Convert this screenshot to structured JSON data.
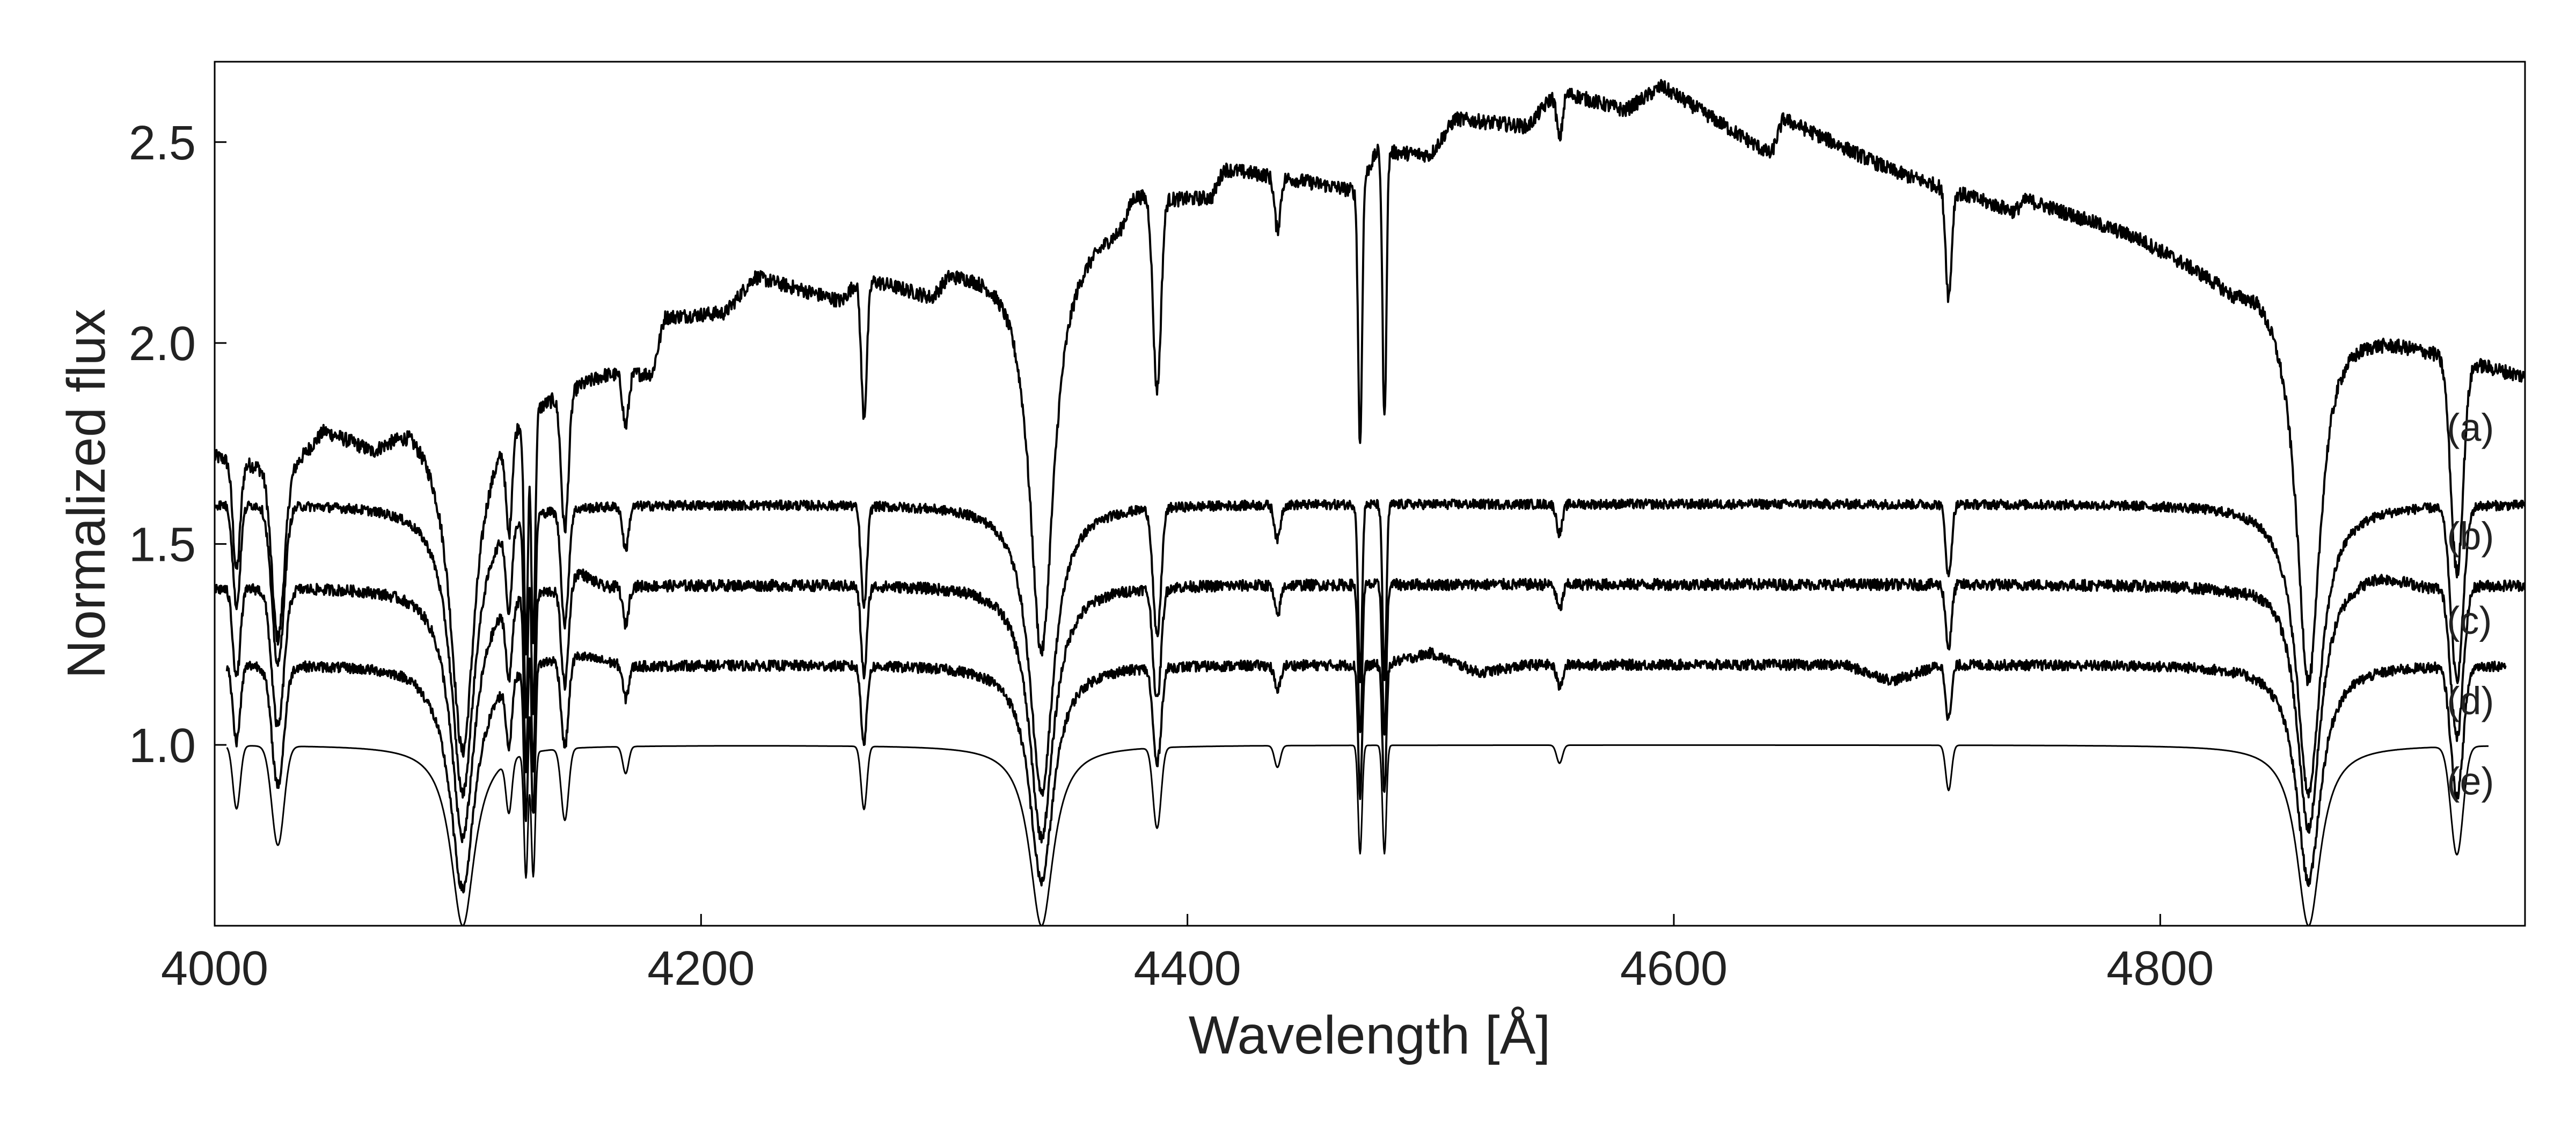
{
  "chart_data": {
    "type": "line",
    "title": "",
    "xlabel": "Wavelength [Å]",
    "ylabel": "Normalized flux",
    "xlim": [
      4000,
      4950
    ],
    "ylim": [
      0.55,
      2.7
    ],
    "xticks": [
      4000,
      4200,
      4400,
      4600,
      4800
    ],
    "xtick_labels": [
      "4000",
      "4200",
      "4400",
      "4600",
      "4800"
    ],
    "yticks": [
      1.0,
      1.5,
      2.0,
      2.5
    ],
    "ytick_labels": [
      "1.0",
      "1.5",
      "2.0",
      "2.5"
    ],
    "grid": false,
    "legend": "none",
    "line_color": "#000000",
    "absorption_lines": [
      {
        "x": 4102,
        "depth": 1.0,
        "width": 6
      },
      {
        "x": 4340,
        "depth": 1.0,
        "width": 6
      },
      {
        "x": 4861,
        "depth": 1.0,
        "width": 6
      },
      {
        "x": 4026,
        "depth": 0.55,
        "width": 2.5
      },
      {
        "x": 4009,
        "depth": 0.35,
        "width": 1.5
      },
      {
        "x": 4121,
        "depth": 0.3,
        "width": 1.2
      },
      {
        "x": 4128,
        "depth": 0.7,
        "width": 0.8
      },
      {
        "x": 4131,
        "depth": 0.7,
        "width": 0.8
      },
      {
        "x": 4144,
        "depth": 0.4,
        "width": 1.5
      },
      {
        "x": 4169,
        "depth": 0.15,
        "width": 1.2
      },
      {
        "x": 4267,
        "depth": 0.35,
        "width": 1.2
      },
      {
        "x": 4387,
        "depth": 0.25,
        "width": 1.5
      },
      {
        "x": 4388,
        "depth": 0.25,
        "width": 1.5
      },
      {
        "x": 4437,
        "depth": 0.12,
        "width": 1.2
      },
      {
        "x": 4471,
        "depth": 0.6,
        "width": 0.8
      },
      {
        "x": 4481,
        "depth": 0.6,
        "width": 0.8
      },
      {
        "x": 4553,
        "depth": 0.1,
        "width": 1.2
      },
      {
        "x": 4713,
        "depth": 0.25,
        "width": 1.2
      },
      {
        "x": 4922,
        "depth": 0.6,
        "width": 2.5
      }
    ],
    "series": [
      {
        "label": "(a)",
        "label_x": 4930,
        "label_y": 1.79,
        "x_end": 4950,
        "noise": 0.018,
        "continuum": [
          [
            4000,
            1.72
          ],
          [
            4030,
            1.68
          ],
          [
            4045,
            1.79
          ],
          [
            4065,
            1.75
          ],
          [
            4080,
            1.82
          ],
          [
            4098,
            1.78
          ],
          [
            4115,
            1.82
          ],
          [
            4130,
            1.86
          ],
          [
            4160,
            1.93
          ],
          [
            4180,
            1.93
          ],
          [
            4185,
            2.07
          ],
          [
            4210,
            2.08
          ],
          [
            4222,
            2.17
          ],
          [
            4258,
            2.11
          ],
          [
            4265,
            2.17
          ],
          [
            4295,
            2.13
          ],
          [
            4302,
            2.19
          ],
          [
            4330,
            2.21
          ],
          [
            4340,
            2.24
          ],
          [
            4352,
            2.27
          ],
          [
            4372,
            2.31
          ],
          [
            4378,
            2.39
          ],
          [
            4395,
            2.37
          ],
          [
            4410,
            2.37
          ],
          [
            4415,
            2.44
          ],
          [
            4445,
            2.41
          ],
          [
            4470,
            2.38
          ],
          [
            4478,
            2.48
          ],
          [
            4500,
            2.47
          ],
          [
            4510,
            2.56
          ],
          [
            4540,
            2.54
          ],
          [
            4552,
            2.63
          ],
          [
            4580,
            2.58
          ],
          [
            4595,
            2.64
          ],
          [
            4640,
            2.47
          ],
          [
            4645,
            2.56
          ],
          [
            4690,
            2.43
          ],
          [
            4740,
            2.33
          ],
          [
            4745,
            2.36
          ],
          [
            4790,
            2.27
          ],
          [
            4830,
            2.15
          ],
          [
            4840,
            2.17
          ],
          [
            4880,
            2.05
          ],
          [
            4920,
            1.97
          ],
          [
            4950,
            1.92
          ]
        ]
      },
      {
        "label": "(b)",
        "label_x": 4930,
        "label_y": 1.52,
        "x_end": 4950,
        "noise": 0.012,
        "continuum": [
          [
            4000,
            1.6
          ],
          [
            4950,
            1.6
          ]
        ]
      },
      {
        "label": "(c)",
        "label_x": 4930,
        "label_y": 1.31,
        "x_end": 4950,
        "noise": 0.014,
        "continuum": [
          [
            4000,
            1.39
          ],
          [
            4140,
            1.4
          ],
          [
            4150,
            1.44
          ],
          [
            4160,
            1.4
          ],
          [
            4830,
            1.4
          ],
          [
            4855,
            1.44
          ],
          [
            4890,
            1.44
          ],
          [
            4910,
            1.4
          ],
          [
            4950,
            1.4
          ]
        ]
      },
      {
        "label": "(d)",
        "label_x": 4930,
        "label_y": 1.11,
        "x_end": 4942,
        "noise": 0.013,
        "continuum": [
          [
            4005,
            1.2
          ],
          [
            4080,
            1.2
          ],
          [
            4100,
            1.16
          ],
          [
            4130,
            1.22
          ],
          [
            4150,
            1.23
          ],
          [
            4170,
            1.2
          ],
          [
            4480,
            1.2
          ],
          [
            4500,
            1.23
          ],
          [
            4520,
            1.18
          ],
          [
            4540,
            1.2
          ],
          [
            4670,
            1.2
          ],
          [
            4690,
            1.16
          ],
          [
            4710,
            1.2
          ],
          [
            4942,
            1.2
          ]
        ]
      },
      {
        "label": "(e)",
        "label_x": 4930,
        "label_y": 0.91,
        "x_end": 4935,
        "noise": 0.0,
        "continuum": [
          [
            4005,
            1.0
          ],
          [
            4935,
            1.0
          ]
        ]
      }
    ]
  }
}
